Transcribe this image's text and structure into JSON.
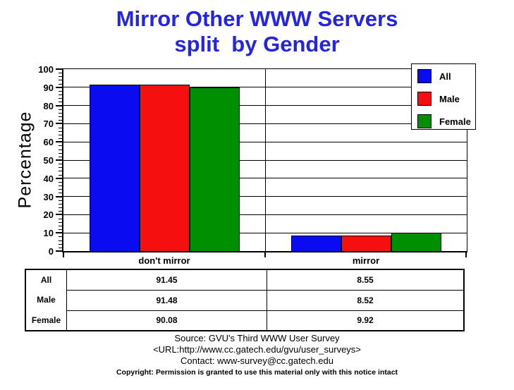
{
  "title": {
    "line1": "Mirror Other WWW Servers",
    "line2": "split  by Gender",
    "color": "#2525e0"
  },
  "chart_data": {
    "type": "bar",
    "title": "Mirror Other WWW Servers split by Gender",
    "categories": [
      "don't mirror",
      "mirror"
    ],
    "series": [
      {
        "name": "All",
        "color": "#0b0bf2",
        "values": [
          91.45,
          8.55
        ]
      },
      {
        "name": "Male",
        "color": "#f50f0f",
        "values": [
          91.48,
          8.52
        ]
      },
      {
        "name": "Female",
        "color": "#008f00",
        "values": [
          90.08,
          9.92
        ]
      }
    ],
    "xlabel": "",
    "ylabel": "Percentage",
    "ylim": [
      0,
      100
    ],
    "yticks": [
      0,
      10,
      20,
      30,
      40,
      50,
      60,
      70,
      80,
      90,
      100
    ],
    "minor_tick_step": 2,
    "grid": true,
    "legend_position": "top-right"
  },
  "table": {
    "row_labels": [
      "All",
      "Male",
      "Female"
    ],
    "columns": [
      "don't mirror",
      "mirror"
    ],
    "rows": [
      [
        "91.45",
        "8.55"
      ],
      [
        "91.48",
        "8.52"
      ],
      [
        "90.08",
        "9.92"
      ]
    ]
  },
  "footer": {
    "source": "Source: GVU's Third WWW User Survey",
    "url": "<URL:http://www.cc.gatech.edu/gvu/user_surveys>",
    "contact": "Contact: www-survey@cc.gatech.edu",
    "copyright": "Copyright: Permission is granted to use this material only with this notice intact"
  }
}
